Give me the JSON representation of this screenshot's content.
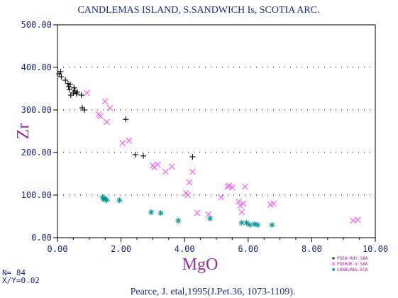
{
  "chart_data": {
    "type": "scatter",
    "title": "CANDLEMAS ISLAND, S.SANDWICH Is, SCOTIA ARC.",
    "xlabel": "MgO",
    "ylabel": "Zr",
    "xlim": [
      0,
      10
    ],
    "ylim": [
      0,
      500
    ],
    "x_ticks": [
      "0.00",
      "2.00",
      "4.00",
      "6.00",
      "8.00",
      "10.00"
    ],
    "y_ticks": [
      "0.00",
      "100.00",
      "200.00",
      "300.00",
      "400.00",
      "500.00"
    ],
    "grid": "dotted horizontal",
    "legend_position": "bottom-right",
    "series": [
      {
        "name": "PUEH-RHY.SAA",
        "color": "#000000",
        "marker": "plus",
        "points": [
          [
            0.05,
            385
          ],
          [
            0.1,
            390
          ],
          [
            0.12,
            378
          ],
          [
            0.25,
            370
          ],
          [
            0.33,
            362
          ],
          [
            0.35,
            355
          ],
          [
            0.38,
            348
          ],
          [
            0.4,
            360
          ],
          [
            0.42,
            335
          ],
          [
            0.5,
            340
          ],
          [
            0.52,
            352
          ],
          [
            0.55,
            345
          ],
          [
            0.6,
            338
          ],
          [
            0.62,
            342
          ],
          [
            0.75,
            335
          ],
          [
            0.78,
            305
          ],
          [
            0.85,
            300
          ],
          [
            2.15,
            278
          ],
          [
            2.45,
            195
          ],
          [
            2.7,
            192
          ],
          [
            4.25,
            190
          ]
        ]
      },
      {
        "name": "PUEHUE-V.SAA",
        "color": "#ff55ff",
        "marker": "x",
        "points": [
          [
            0.93,
            340
          ],
          [
            1.3,
            290
          ],
          [
            1.35,
            285
          ],
          [
            1.5,
            320
          ],
          [
            1.55,
            272
          ],
          [
            1.65,
            305
          ],
          [
            2.05,
            222
          ],
          [
            2.25,
            228
          ],
          [
            3.0,
            170
          ],
          [
            3.05,
            165
          ],
          [
            3.15,
            172
          ],
          [
            3.4,
            155
          ],
          [
            3.6,
            167
          ],
          [
            4.05,
            105
          ],
          [
            4.1,
            100
          ],
          [
            4.15,
            130
          ],
          [
            4.25,
            155
          ],
          [
            4.4,
            58
          ],
          [
            4.75,
            55
          ],
          [
            5.15,
            95
          ],
          [
            5.35,
            120
          ],
          [
            5.4,
            122
          ],
          [
            5.5,
            118
          ],
          [
            5.7,
            85
          ],
          [
            5.75,
            75
          ],
          [
            5.8,
            60
          ],
          [
            5.85,
            80
          ],
          [
            5.9,
            120
          ],
          [
            6.7,
            78
          ],
          [
            6.8,
            80
          ],
          [
            9.3,
            40
          ],
          [
            9.45,
            42
          ]
        ]
      },
      {
        "name": "CANDLMAS.SCA",
        "color": "#009999",
        "marker": "asterisk",
        "points": [
          [
            1.42,
            95
          ],
          [
            1.45,
            90
          ],
          [
            1.5,
            92
          ],
          [
            1.55,
            88
          ],
          [
            1.95,
            88
          ],
          [
            2.95,
            60
          ],
          [
            3.25,
            58
          ],
          [
            3.8,
            40
          ],
          [
            4.8,
            45
          ],
          [
            5.8,
            35
          ],
          [
            5.95,
            35
          ],
          [
            6.05,
            30
          ],
          [
            6.2,
            32
          ],
          [
            6.3,
            30
          ],
          [
            6.75,
            30
          ]
        ]
      }
    ]
  },
  "info": {
    "n_text": "N=  84",
    "xy_text": "X/Y=0.02"
  },
  "citation": "Pearce, J. etal,1995(J.Pet.36, 1073-1109)."
}
